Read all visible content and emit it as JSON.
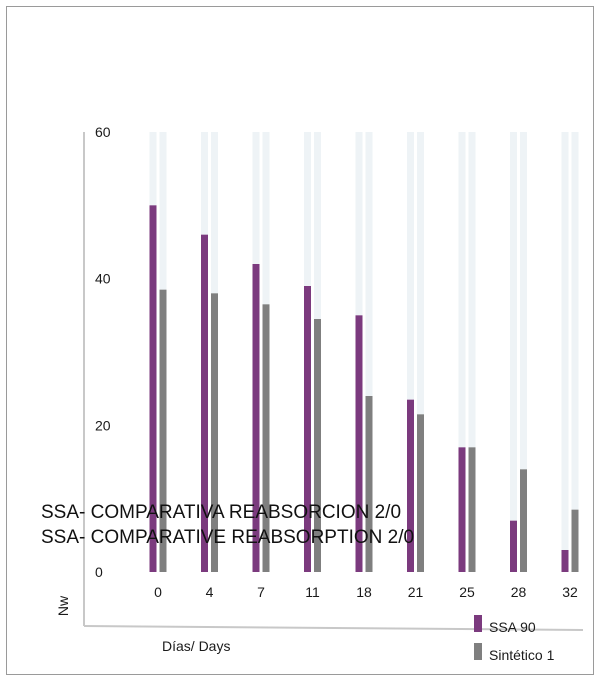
{
  "chart_data": {
    "type": "bar",
    "title_lines": [
      "SSA- COMPARATIVA REABSORCION 2/0",
      "SSA- COMPARATIVE REABSORPTION 2/0"
    ],
    "xlabel": "Días/ Days",
    "ylabel": "Nw",
    "ylim": [
      0,
      60
    ],
    "yticks": [
      0,
      20,
      40,
      60
    ],
    "categories": [
      "0",
      "4",
      "7",
      "11",
      "18",
      "21",
      "25",
      "28",
      "32"
    ],
    "series": [
      {
        "name": "SSA 90",
        "color": "#7b3a7e",
        "values": [
          50,
          46,
          42,
          39,
          35,
          23.5,
          17,
          7,
          3
        ]
      },
      {
        "name": "Sintético 1",
        "color": "#7f7f7f",
        "values": [
          38.5,
          38,
          36.5,
          34.5,
          24,
          21.5,
          17,
          14,
          8.5
        ]
      }
    ],
    "background_bar_color": "#eef3f6",
    "legend_position": "bottom-right",
    "grid": false
  }
}
